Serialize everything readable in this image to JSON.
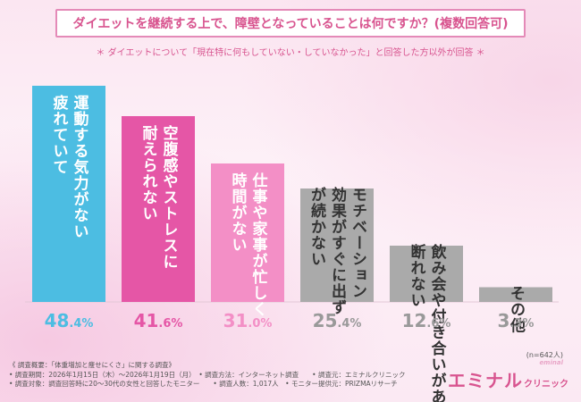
{
  "title": "ダイエットを継続する上で、障壁となっていることは何ですか？(複数回答可)",
  "subtitle": "＊ ダイエットについて「現在特に何もしていない・していなかった」と回答した方以外が回答 ＊",
  "sample_size": "(n=642人)",
  "notes": [
    "《 調査概要：「体重増加と痩せにくさ」に関する調査》",
    "• 調査期間：2026年1月15日（木）～2026年1月19日（月）　• 調査方法：インターネット調査　　• 調査元：エミナルクリニック",
    "• 調査対象：調査回答時に20～30代の女性と回答したモニター　　• 調査人数：1,017人　• モニター提供元：PRIZMAリサーチ"
  ],
  "logo": {
    "main": "エミナル",
    "sub": "クリニック",
    "mark": "eminal"
  },
  "chart_data": {
    "type": "bar",
    "title": "ダイエットを継続する上で、障壁となっていることは何ですか？(複数回答可)",
    "ylim": [
      0,
      50
    ],
    "unit": "%",
    "categories": [
      [
        "運動する気力がない",
        "疲れていて"
      ],
      [
        "空腹感やストレスに",
        "耐えられない"
      ],
      [
        "仕事や家事が忙しく",
        "時間がない"
      ],
      [
        "モチベーション",
        "効果がすぐに出ず",
        "が続かない"
      ],
      [
        "飲み会や付き合いがあり",
        "断れない"
      ],
      [
        "その他"
      ]
    ],
    "values": [
      48.4,
      41.6,
      31.0,
      25.4,
      12.6,
      3.3
    ],
    "value_labels": [
      "48.4",
      "41.6",
      "31.0",
      "25.4",
      "12.6",
      "3.3"
    ],
    "colors": [
      "#4cbde2",
      "#e556a6",
      "#f38fc6",
      "#aaaaaa",
      "#aaaaaa",
      "#aaaaaa"
    ],
    "value_colors": [
      "#4cbde2",
      "#e556a6",
      "#f38fc6",
      "#999999",
      "#999999",
      "#999999"
    ]
  }
}
